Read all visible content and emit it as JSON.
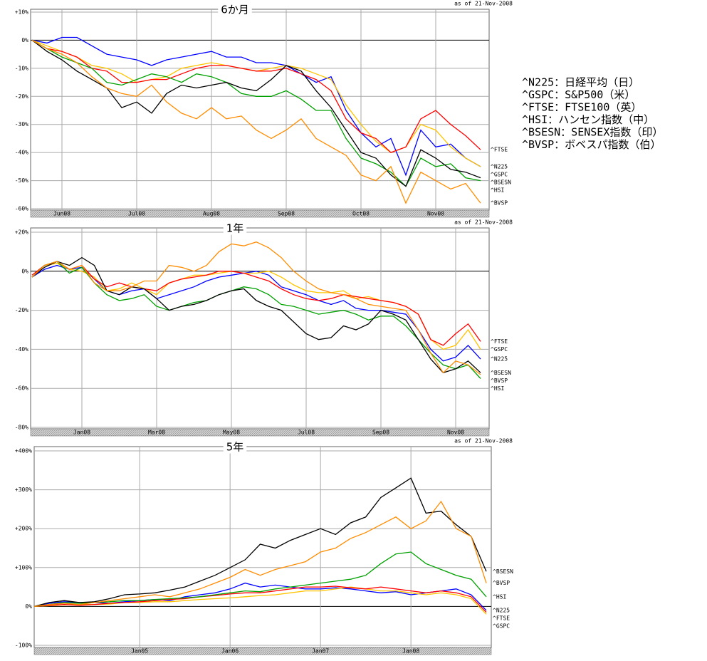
{
  "chart_data": [
    {
      "type": "line",
      "title": "6か月",
      "as_of": "as of 21-Nov-2008",
      "categories": [
        null,
        null,
        "Jun08",
        null,
        null,
        null,
        null,
        "Jul08",
        null,
        null,
        null,
        null,
        "Aug08",
        null,
        null,
        null,
        null,
        "Sep08",
        null,
        null,
        null,
        null,
        "Oct08",
        null,
        null,
        null,
        null,
        "Nov08",
        null,
        null,
        null
      ],
      "ylim": [
        -60,
        10
      ],
      "yticks": [
        {
          "value": 10,
          "label": "+10%"
        },
        {
          "value": 0,
          "label": "0%"
        },
        {
          "value": -10,
          "label": "-10%"
        },
        {
          "value": -20,
          "label": "-20%"
        },
        {
          "value": -30,
          "label": "-30%"
        },
        {
          "value": -40,
          "label": "-40%"
        },
        {
          "value": -50,
          "label": "-50%"
        },
        {
          "value": -60,
          "label": "-60%"
        }
      ],
      "grid": true,
      "series": [
        {
          "name": "^N225",
          "color": "#0000ff",
          "values": [
            0,
            -1,
            1,
            1,
            -2,
            -5,
            -6,
            -7,
            -9,
            -7,
            -6,
            -5,
            -4,
            -6,
            -6,
            -8,
            -8,
            -9,
            -12,
            -15,
            -13,
            -25,
            -33,
            -38,
            -35,
            -48,
            -32,
            -38,
            -37,
            -42,
            -45
          ]
        },
        {
          "name": "^GSPC",
          "color": "#ffc400",
          "values": [
            0,
            -2,
            -4,
            -6,
            -9,
            -10,
            -12,
            -15,
            -14,
            -13,
            -10,
            -9,
            -8,
            -9,
            -10,
            -11,
            -10,
            -9,
            -10,
            -12,
            -14,
            -23,
            -30,
            -36,
            -40,
            -38,
            -30,
            -32,
            -38,
            -42,
            -45
          ]
        },
        {
          "name": "^FTSE",
          "color": "#ff0000",
          "values": [
            0,
            -3,
            -4,
            -6,
            -10,
            -11,
            -15,
            -15,
            -14,
            -14,
            -12,
            -10,
            -9,
            -9,
            -10,
            -11,
            -11,
            -10,
            -12,
            -14,
            -18,
            -28,
            -33,
            -35,
            -40,
            -38,
            -28,
            -25,
            -30,
            -34,
            -39
          ]
        },
        {
          "name": "^HSI",
          "color": "#00a000",
          "values": [
            0,
            -3,
            -6,
            -8,
            -10,
            -15,
            -16,
            -14,
            -12,
            -13,
            -15,
            -12,
            -13,
            -15,
            -19,
            -20,
            -20,
            -18,
            -21,
            -25,
            -25,
            -35,
            -42,
            -44,
            -47,
            -52,
            -42,
            -45,
            -44,
            -49,
            -50
          ]
        },
        {
          "name": "^BSESN",
          "color": "#000000",
          "values": [
            0,
            -4,
            -7,
            -11,
            -14,
            -17,
            -24,
            -22,
            -26,
            -19,
            -16,
            -17,
            -16,
            -15,
            -17,
            -18,
            -14,
            -9,
            -11,
            -18,
            -24,
            -32,
            -40,
            -42,
            -48,
            -52,
            -39,
            -42,
            -46,
            -47,
            -49
          ]
        },
        {
          "name": "^BVSP",
          "color": "#ff8c00",
          "values": [
            0,
            -3,
            -5,
            -8,
            -13,
            -17,
            -19,
            -20,
            -16,
            -22,
            -26,
            -28,
            -24,
            -28,
            -27,
            -32,
            -35,
            -32,
            -28,
            -35,
            -38,
            -41,
            -48,
            -50,
            -45,
            -58,
            -47,
            -50,
            -53,
            -51,
            -58
          ]
        }
      ]
    },
    {
      "type": "line",
      "title": "1年",
      "as_of": "as of 21-Nov-2008",
      "categories": [
        null,
        null,
        null,
        null,
        "Jan08",
        null,
        null,
        null,
        null,
        null,
        "Mar08",
        null,
        null,
        null,
        null,
        null,
        "May08",
        null,
        null,
        null,
        null,
        null,
        "Jul08",
        null,
        null,
        null,
        null,
        null,
        "Sep08",
        null,
        null,
        null,
        null,
        null,
        "Nov08",
        null,
        null
      ],
      "ylim": [
        -80,
        20
      ],
      "yticks": [
        {
          "value": 20,
          "label": "+20%"
        },
        {
          "value": 0,
          "label": "0%"
        },
        {
          "value": -20,
          "label": "-20%"
        },
        {
          "value": -40,
          "label": "-40%"
        },
        {
          "value": -60,
          "label": "-60%"
        },
        {
          "value": -80,
          "label": "-80%"
        }
      ],
      "grid": true,
      "series": [
        {
          "name": "^N225",
          "color": "#0000ff",
          "values": [
            -3,
            1,
            3,
            1,
            2,
            -4,
            -10,
            -12,
            -10,
            -9,
            -14,
            -12,
            -10,
            -8,
            -5,
            -3,
            -2,
            -1,
            0,
            -2,
            -8,
            -10,
            -12,
            -15,
            -17,
            -15,
            -19,
            -20,
            -20,
            -21,
            -22,
            -30,
            -40,
            -46,
            -44,
            -38,
            -45
          ]
        },
        {
          "name": "^GSPC",
          "color": "#ffc400",
          "values": [
            -3,
            3,
            4,
            1,
            0,
            -3,
            -10,
            -9,
            -6,
            -9,
            -12,
            -6,
            -4,
            -2,
            -2,
            -1,
            0,
            -1,
            -1,
            0,
            -3,
            -7,
            -10,
            -11,
            -11,
            -10,
            -14,
            -13,
            -15,
            -16,
            -18,
            -22,
            -35,
            -40,
            -38,
            -30,
            -40
          ]
        },
        {
          "name": "^FTSE",
          "color": "#ff0000",
          "values": [
            -2,
            3,
            5,
            1,
            3,
            -4,
            -8,
            -6,
            -8,
            -9,
            -10,
            -6,
            -4,
            -3,
            -2,
            0,
            0,
            -1,
            -3,
            -5,
            -9,
            -12,
            -14,
            -15,
            -14,
            -12,
            -13,
            -14,
            -15,
            -16,
            -18,
            -22,
            -35,
            -38,
            -32,
            -27,
            -36
          ]
        },
        {
          "name": "^HSI",
          "color": "#00a000",
          "values": [
            -3,
            3,
            5,
            -1,
            2,
            -6,
            -12,
            -15,
            -14,
            -12,
            -18,
            -20,
            -18,
            -16,
            -15,
            -12,
            -10,
            -8,
            -9,
            -12,
            -17,
            -18,
            -20,
            -22,
            -21,
            -20,
            -22,
            -25,
            -23,
            -23,
            -28,
            -35,
            -42,
            -48,
            -50,
            -48,
            -55
          ]
        },
        {
          "name": "^BSESN",
          "color": "#000000",
          "values": [
            -3,
            2,
            5,
            3,
            7,
            3,
            -10,
            -12,
            -8,
            -9,
            -14,
            -20,
            -18,
            -17,
            -15,
            -12,
            -10,
            -9,
            -15,
            -18,
            -20,
            -26,
            -32,
            -35,
            -34,
            -28,
            -30,
            -27,
            -20,
            -22,
            -25,
            -35,
            -45,
            -52,
            -50,
            -46,
            -52
          ]
        },
        {
          "name": "^BVSP",
          "color": "#ff8c00",
          "values": [
            -3,
            3,
            5,
            1,
            3,
            -6,
            -10,
            -10,
            -8,
            -5,
            -5,
            3,
            2,
            0,
            3,
            10,
            14,
            13,
            15,
            12,
            7,
            0,
            -5,
            -9,
            -11,
            -12,
            -14,
            -17,
            -18,
            -19,
            -20,
            -30,
            -42,
            -52,
            -46,
            -48,
            -53
          ]
        }
      ]
    },
    {
      "type": "line",
      "title": "5年",
      "as_of": "as of 21-Nov-2008",
      "categories": [
        null,
        null,
        null,
        null,
        null,
        null,
        null,
        "Jan05",
        null,
        null,
        null,
        null,
        null,
        "Jan06",
        null,
        null,
        null,
        null,
        null,
        "Jan07",
        null,
        null,
        null,
        null,
        null,
        "Jan08",
        null,
        null,
        null,
        null,
        null
      ],
      "ylim": [
        -100,
        400
      ],
      "yticks": [
        {
          "value": 400,
          "label": "+400%"
        },
        {
          "value": 300,
          "label": "+300%"
        },
        {
          "value": 200,
          "label": "+200%"
        },
        {
          "value": 100,
          "label": "+100%"
        },
        {
          "value": 0,
          "label": "0%"
        },
        {
          "value": -100,
          "label": "-100%"
        }
      ],
      "grid": true,
      "series": [
        {
          "name": "^N225",
          "color": "#0000ff",
          "values": [
            0,
            8,
            12,
            10,
            10,
            8,
            12,
            15,
            18,
            15,
            25,
            30,
            35,
            45,
            60,
            50,
            55,
            50,
            45,
            45,
            48,
            45,
            40,
            35,
            38,
            30,
            35,
            40,
            45,
            30,
            -10
          ]
        },
        {
          "name": "^GSPC",
          "color": "#ffc400",
          "values": [
            0,
            2,
            4,
            5,
            5,
            6,
            10,
            10,
            12,
            12,
            15,
            18,
            20,
            22,
            25,
            28,
            30,
            35,
            40,
            40,
            45,
            50,
            45,
            40,
            40,
            35,
            30,
            35,
            30,
            20,
            -20
          ]
        },
        {
          "name": "^FTSE",
          "color": "#ff0000",
          "values": [
            0,
            3,
            5,
            3,
            5,
            8,
            10,
            12,
            15,
            18,
            20,
            25,
            28,
            32,
            35,
            35,
            40,
            45,
            50,
            50,
            52,
            48,
            45,
            50,
            45,
            40,
            35,
            40,
            35,
            25,
            -15
          ]
        },
        {
          "name": "^HSI",
          "color": "#00a000",
          "values": [
            0,
            5,
            10,
            8,
            10,
            12,
            15,
            15,
            18,
            20,
            22,
            25,
            30,
            35,
            40,
            38,
            45,
            50,
            55,
            60,
            65,
            70,
            80,
            110,
            135,
            140,
            110,
            95,
            80,
            70,
            25
          ]
        },
        {
          "name": "^BSESN",
          "color": "#000000",
          "values": [
            0,
            10,
            15,
            10,
            12,
            20,
            30,
            32,
            35,
            42,
            50,
            65,
            80,
            100,
            120,
            160,
            150,
            170,
            185,
            200,
            185,
            215,
            230,
            280,
            305,
            330,
            240,
            245,
            210,
            180,
            90
          ]
        },
        {
          "name": "^BVSP",
          "color": "#ff8c00",
          "values": [
            0,
            5,
            8,
            5,
            10,
            15,
            20,
            25,
            30,
            25,
            35,
            45,
            60,
            75,
            95,
            80,
            95,
            105,
            115,
            140,
            150,
            175,
            190,
            210,
            230,
            200,
            220,
            270,
            200,
            180,
            60
          ]
        }
      ]
    }
  ],
  "annotations": [
    "^N225：日経平均（日）",
    "^GSPC：S&P500（米）",
    "^FTSE：FTSE100（英）",
    "^HSI：ハンセン指数（中）",
    "^BSESN：SENSEX指数（印）",
    "^BVSP：ボベスパ指数（伯）"
  ]
}
